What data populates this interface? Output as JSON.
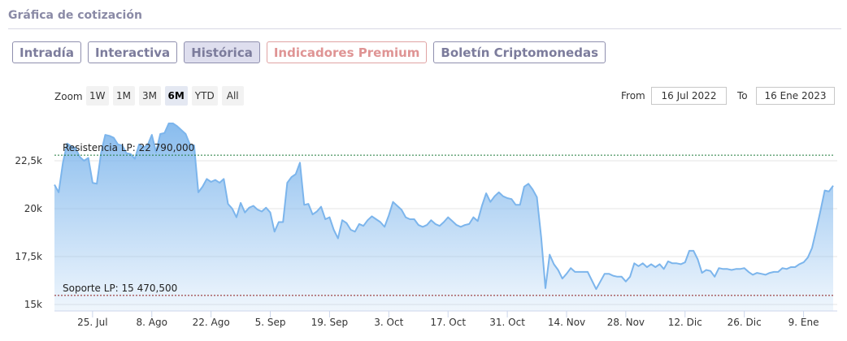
{
  "header": {
    "title": "Gráfica de cotización"
  },
  "tabs": [
    {
      "label": "Intradía",
      "state": "normal"
    },
    {
      "label": "Interactiva",
      "state": "normal"
    },
    {
      "label": "Histórica",
      "state": "active"
    },
    {
      "label": "Indicadores Premium",
      "state": "premium"
    },
    {
      "label": "Boletín Criptomonedas",
      "state": "normal"
    }
  ],
  "range_selector": {
    "zoom_label": "Zoom",
    "buttons": [
      {
        "label": "1W",
        "active": false
      },
      {
        "label": "1M",
        "active": false
      },
      {
        "label": "3M",
        "active": false
      },
      {
        "label": "6M",
        "active": true
      },
      {
        "label": "YTD",
        "active": false
      },
      {
        "label": "All",
        "active": false
      }
    ],
    "from_label": "From",
    "from_value": "16 Jul 2022",
    "to_label": "To",
    "to_value": "16 Ene 2023"
  },
  "colors": {
    "line": "#7cb5ec",
    "area_top": "#7cb5ec",
    "resistance": "#1f7a3a",
    "support": "#8b1a1a",
    "tab_border": "#8f8fae",
    "premium": "#df9494"
  },
  "chart_data": {
    "type": "area",
    "x_start": "2022-07-16",
    "x_end": "2023-01-16",
    "ylim": [
      15000,
      25000
    ],
    "y_ticks": [
      {
        "value": 15000,
        "label": "15k"
      },
      {
        "value": 17500,
        "label": "17,5k"
      },
      {
        "value": 20000,
        "label": "20k"
      },
      {
        "value": 22500,
        "label": "22,5k"
      }
    ],
    "x_ticks": [
      {
        "date": "2022-07-25",
        "label": "25. Jul"
      },
      {
        "date": "2022-08-08",
        "label": "8. Ago"
      },
      {
        "date": "2022-08-22",
        "label": "22. Ago"
      },
      {
        "date": "2022-09-05",
        "label": "5. Sep"
      },
      {
        "date": "2022-09-19",
        "label": "19. Sep"
      },
      {
        "date": "2022-10-03",
        "label": "3. Oct"
      },
      {
        "date": "2022-10-17",
        "label": "17. Oct"
      },
      {
        "date": "2022-10-31",
        "label": "31. Oct"
      },
      {
        "date": "2022-11-14",
        "label": "14. Nov"
      },
      {
        "date": "2022-11-28",
        "label": "28. Nov"
      },
      {
        "date": "2022-12-12",
        "label": "12. Dic"
      },
      {
        "date": "2022-12-26",
        "label": "26. Dic"
      },
      {
        "date": "2023-01-09",
        "label": "9. Ene"
      }
    ],
    "grid": true,
    "plot_lines": [
      {
        "label": "Resistencia LP: 22 790,000",
        "value": 22790,
        "style": "dashed",
        "color": "#1f7a3a"
      },
      {
        "label": "Soporte LP: 15 470,500",
        "value": 15470.5,
        "style": "dashed",
        "color": "#8b1a1a"
      }
    ],
    "series": [
      {
        "points": [
          [
            "2022-07-16",
            21250
          ],
          [
            "2022-07-17",
            20850
          ],
          [
            "2022-07-18",
            22400
          ],
          [
            "2022-07-19",
            23400
          ],
          [
            "2022-07-20",
            23250
          ],
          [
            "2022-07-21",
            23150
          ],
          [
            "2022-07-22",
            22700
          ],
          [
            "2022-07-23",
            22500
          ],
          [
            "2022-07-24",
            22650
          ],
          [
            "2022-07-25",
            21350
          ],
          [
            "2022-07-26",
            21300
          ],
          [
            "2022-07-27",
            22900
          ],
          [
            "2022-07-28",
            23850
          ],
          [
            "2022-07-29",
            23800
          ],
          [
            "2022-07-30",
            23700
          ],
          [
            "2022-07-31",
            23350
          ],
          [
            "2022-08-01",
            23300
          ],
          [
            "2022-08-02",
            22900
          ],
          [
            "2022-08-03",
            22850
          ],
          [
            "2022-08-04",
            22600
          ],
          [
            "2022-08-05",
            23350
          ],
          [
            "2022-08-06",
            23200
          ],
          [
            "2022-08-07",
            23300
          ],
          [
            "2022-08-08",
            23850
          ],
          [
            "2022-08-09",
            22950
          ],
          [
            "2022-08-10",
            23900
          ],
          [
            "2022-08-11",
            23950
          ],
          [
            "2022-08-12",
            24450
          ],
          [
            "2022-08-13",
            24450
          ],
          [
            "2022-08-14",
            24300
          ],
          [
            "2022-08-15",
            24100
          ],
          [
            "2022-08-16",
            23900
          ],
          [
            "2022-08-17",
            23350
          ],
          [
            "2022-08-18",
            23300
          ],
          [
            "2022-08-19",
            20850
          ],
          [
            "2022-08-20",
            21150
          ],
          [
            "2022-08-21",
            21550
          ],
          [
            "2022-08-22",
            21400
          ],
          [
            "2022-08-23",
            21500
          ],
          [
            "2022-08-24",
            21350
          ],
          [
            "2022-08-25",
            21550
          ],
          [
            "2022-08-26",
            20250
          ],
          [
            "2022-08-27",
            20000
          ],
          [
            "2022-08-28",
            19550
          ],
          [
            "2022-08-29",
            20300
          ],
          [
            "2022-08-30",
            19800
          ],
          [
            "2022-08-31",
            20050
          ],
          [
            "2022-09-01",
            20150
          ],
          [
            "2022-09-02",
            19950
          ],
          [
            "2022-09-03",
            19850
          ],
          [
            "2022-09-04",
            20050
          ],
          [
            "2022-09-05",
            19800
          ],
          [
            "2022-09-06",
            18800
          ],
          [
            "2022-09-07",
            19300
          ],
          [
            "2022-09-08",
            19300
          ],
          [
            "2022-09-09",
            21350
          ],
          [
            "2022-09-10",
            21650
          ],
          [
            "2022-09-11",
            21800
          ],
          [
            "2022-09-12",
            22400
          ],
          [
            "2022-09-13",
            20200
          ],
          [
            "2022-09-14",
            20250
          ],
          [
            "2022-09-15",
            19700
          ],
          [
            "2022-09-16",
            19850
          ],
          [
            "2022-09-17",
            20100
          ],
          [
            "2022-09-18",
            19450
          ],
          [
            "2022-09-19",
            19550
          ],
          [
            "2022-09-20",
            18900
          ],
          [
            "2022-09-21",
            18450
          ],
          [
            "2022-09-22",
            19400
          ],
          [
            "2022-09-23",
            19250
          ],
          [
            "2022-09-24",
            18900
          ],
          [
            "2022-09-25",
            18800
          ],
          [
            "2022-09-26",
            19200
          ],
          [
            "2022-09-27",
            19100
          ],
          [
            "2022-09-28",
            19400
          ],
          [
            "2022-09-29",
            19600
          ],
          [
            "2022-09-30",
            19450
          ],
          [
            "2022-10-01",
            19300
          ],
          [
            "2022-10-02",
            19050
          ],
          [
            "2022-10-03",
            19650
          ],
          [
            "2022-10-04",
            20350
          ],
          [
            "2022-10-05",
            20150
          ],
          [
            "2022-10-06",
            19950
          ],
          [
            "2022-10-07",
            19550
          ],
          [
            "2022-10-08",
            19450
          ],
          [
            "2022-10-09",
            19450
          ],
          [
            "2022-10-10",
            19150
          ],
          [
            "2022-10-11",
            19050
          ],
          [
            "2022-10-12",
            19150
          ],
          [
            "2022-10-13",
            19400
          ],
          [
            "2022-10-14",
            19200
          ],
          [
            "2022-10-15",
            19100
          ],
          [
            "2022-10-16",
            19300
          ],
          [
            "2022-10-17",
            19550
          ],
          [
            "2022-10-18",
            19350
          ],
          [
            "2022-10-19",
            19150
          ],
          [
            "2022-10-20",
            19050
          ],
          [
            "2022-10-21",
            19150
          ],
          [
            "2022-10-22",
            19200
          ],
          [
            "2022-10-23",
            19550
          ],
          [
            "2022-10-24",
            19350
          ],
          [
            "2022-10-25",
            20150
          ],
          [
            "2022-10-26",
            20800
          ],
          [
            "2022-10-27",
            20350
          ],
          [
            "2022-10-28",
            20650
          ],
          [
            "2022-10-29",
            20850
          ],
          [
            "2022-10-30",
            20650
          ],
          [
            "2022-10-31",
            20550
          ],
          [
            "2022-11-01",
            20500
          ],
          [
            "2022-11-02",
            20200
          ],
          [
            "2022-11-03",
            20200
          ],
          [
            "2022-11-04",
            21150
          ],
          [
            "2022-11-05",
            21300
          ],
          [
            "2022-11-06",
            21000
          ],
          [
            "2022-11-07",
            20600
          ],
          [
            "2022-11-08",
            18500
          ],
          [
            "2022-11-09",
            15850
          ],
          [
            "2022-11-10",
            17600
          ],
          [
            "2022-11-11",
            17100
          ],
          [
            "2022-11-12",
            16800
          ],
          [
            "2022-11-13",
            16350
          ],
          [
            "2022-11-14",
            16600
          ],
          [
            "2022-11-15",
            16900
          ],
          [
            "2022-11-16",
            16700
          ],
          [
            "2022-11-17",
            16700
          ],
          [
            "2022-11-18",
            16700
          ],
          [
            "2022-11-19",
            16700
          ],
          [
            "2022-11-20",
            16250
          ],
          [
            "2022-11-21",
            15800
          ],
          [
            "2022-11-22",
            16200
          ],
          [
            "2022-11-23",
            16600
          ],
          [
            "2022-11-24",
            16600
          ],
          [
            "2022-11-25",
            16500
          ],
          [
            "2022-11-26",
            16450
          ],
          [
            "2022-11-27",
            16450
          ],
          [
            "2022-11-28",
            16200
          ],
          [
            "2022-11-29",
            16450
          ],
          [
            "2022-11-30",
            17150
          ],
          [
            "2022-12-01",
            17000
          ],
          [
            "2022-12-02",
            17150
          ],
          [
            "2022-12-03",
            16950
          ],
          [
            "2022-12-04",
            17100
          ],
          [
            "2022-12-05",
            16950
          ],
          [
            "2022-12-06",
            17100
          ],
          [
            "2022-12-07",
            16850
          ],
          [
            "2022-12-08",
            17250
          ],
          [
            "2022-12-09",
            17150
          ],
          [
            "2022-12-10",
            17150
          ],
          [
            "2022-12-11",
            17100
          ],
          [
            "2022-12-12",
            17200
          ],
          [
            "2022-12-13",
            17800
          ],
          [
            "2022-12-14",
            17800
          ],
          [
            "2022-12-15",
            17350
          ],
          [
            "2022-12-16",
            16650
          ],
          [
            "2022-12-17",
            16800
          ],
          [
            "2022-12-18",
            16750
          ],
          [
            "2022-12-19",
            16450
          ],
          [
            "2022-12-20",
            16900
          ],
          [
            "2022-12-21",
            16850
          ],
          [
            "2022-12-22",
            16850
          ],
          [
            "2022-12-23",
            16800
          ],
          [
            "2022-12-24",
            16850
          ],
          [
            "2022-12-25",
            16850
          ],
          [
            "2022-12-26",
            16900
          ],
          [
            "2022-12-27",
            16700
          ],
          [
            "2022-12-28",
            16550
          ],
          [
            "2022-12-29",
            16650
          ],
          [
            "2022-12-30",
            16600
          ],
          [
            "2022-12-31",
            16550
          ],
          [
            "2023-01-01",
            16650
          ],
          [
            "2023-01-02",
            16700
          ],
          [
            "2023-01-03",
            16700
          ],
          [
            "2023-01-04",
            16900
          ],
          [
            "2023-01-05",
            16850
          ],
          [
            "2023-01-06",
            16950
          ],
          [
            "2023-01-07",
            16950
          ],
          [
            "2023-01-08",
            17100
          ],
          [
            "2023-01-09",
            17200
          ],
          [
            "2023-01-10",
            17450
          ],
          [
            "2023-01-11",
            17950
          ],
          [
            "2023-01-12",
            18900
          ],
          [
            "2023-01-13",
            19900
          ],
          [
            "2023-01-14",
            20950
          ],
          [
            "2023-01-15",
            20900
          ],
          [
            "2023-01-16",
            21200
          ]
        ]
      }
    ]
  }
}
